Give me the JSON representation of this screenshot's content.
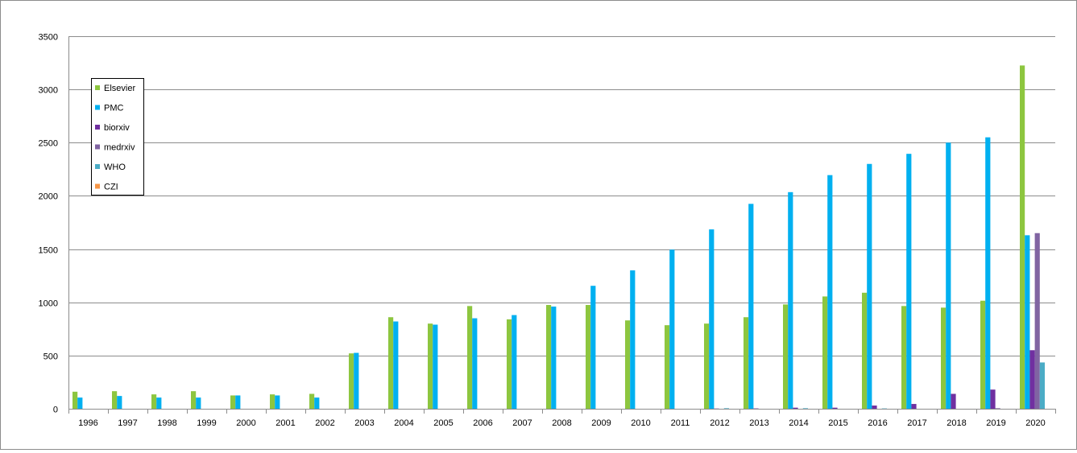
{
  "chart_data": {
    "type": "bar",
    "title": "",
    "xlabel": "",
    "ylabel": "",
    "ylim": [
      0,
      3500
    ],
    "yticks": [
      0,
      500,
      1000,
      1500,
      2000,
      2500,
      3000,
      3500
    ],
    "grid": true,
    "legend_position": "left",
    "categories": [
      "1996",
      "1997",
      "1998",
      "1999",
      "2000",
      "2001",
      "2002",
      "2003",
      "2004",
      "2005",
      "2006",
      "2007",
      "2008",
      "2009",
      "2010",
      "2011",
      "2012",
      "2013",
      "2014",
      "2015",
      "2016",
      "2017",
      "2018",
      "2019",
      "2020"
    ],
    "series": [
      {
        "name": "Elsevier",
        "color": "#8dc63f",
        "values": [
          160,
          165,
          135,
          165,
          125,
          135,
          140,
          520,
          860,
          800,
          965,
          840,
          975,
          975,
          830,
          785,
          800,
          860,
          980,
          1055,
          1090,
          965,
          950,
          1015,
          3225
        ]
      },
      {
        "name": "PMC",
        "color": "#00b0f0",
        "values": [
          105,
          120,
          105,
          105,
          125,
          125,
          105,
          525,
          820,
          790,
          850,
          880,
          960,
          1155,
          1300,
          1495,
          1685,
          1925,
          2035,
          2195,
          2300,
          2395,
          2500,
          2550,
          1630
        ]
      },
      {
        "name": "biorxiv",
        "color": "#7030a0",
        "values": [
          0,
          0,
          0,
          0,
          0,
          0,
          0,
          0,
          0,
          0,
          0,
          0,
          0,
          0,
          0,
          0,
          2,
          3,
          10,
          10,
          30,
          45,
          140,
          180,
          550
        ]
      },
      {
        "name": "medrxiv",
        "color": "#8064a2",
        "values": [
          0,
          0,
          0,
          0,
          0,
          0,
          0,
          0,
          0,
          0,
          0,
          0,
          0,
          0,
          0,
          0,
          0,
          0,
          0,
          0,
          0,
          0,
          0,
          5,
          1650
        ]
      },
      {
        "name": "WHO",
        "color": "#4bacc6",
        "values": [
          0,
          0,
          0,
          0,
          0,
          0,
          0,
          0,
          0,
          0,
          0,
          0,
          0,
          0,
          0,
          0,
          5,
          0,
          5,
          0,
          3,
          0,
          0,
          0,
          435
        ]
      },
      {
        "name": "CZI",
        "color": "#f79646",
        "values": [
          0,
          0,
          0,
          0,
          0,
          0,
          0,
          0,
          0,
          0,
          0,
          0,
          0,
          0,
          0,
          0,
          0,
          0,
          0,
          0,
          0,
          0,
          0,
          0,
          0
        ]
      }
    ]
  }
}
